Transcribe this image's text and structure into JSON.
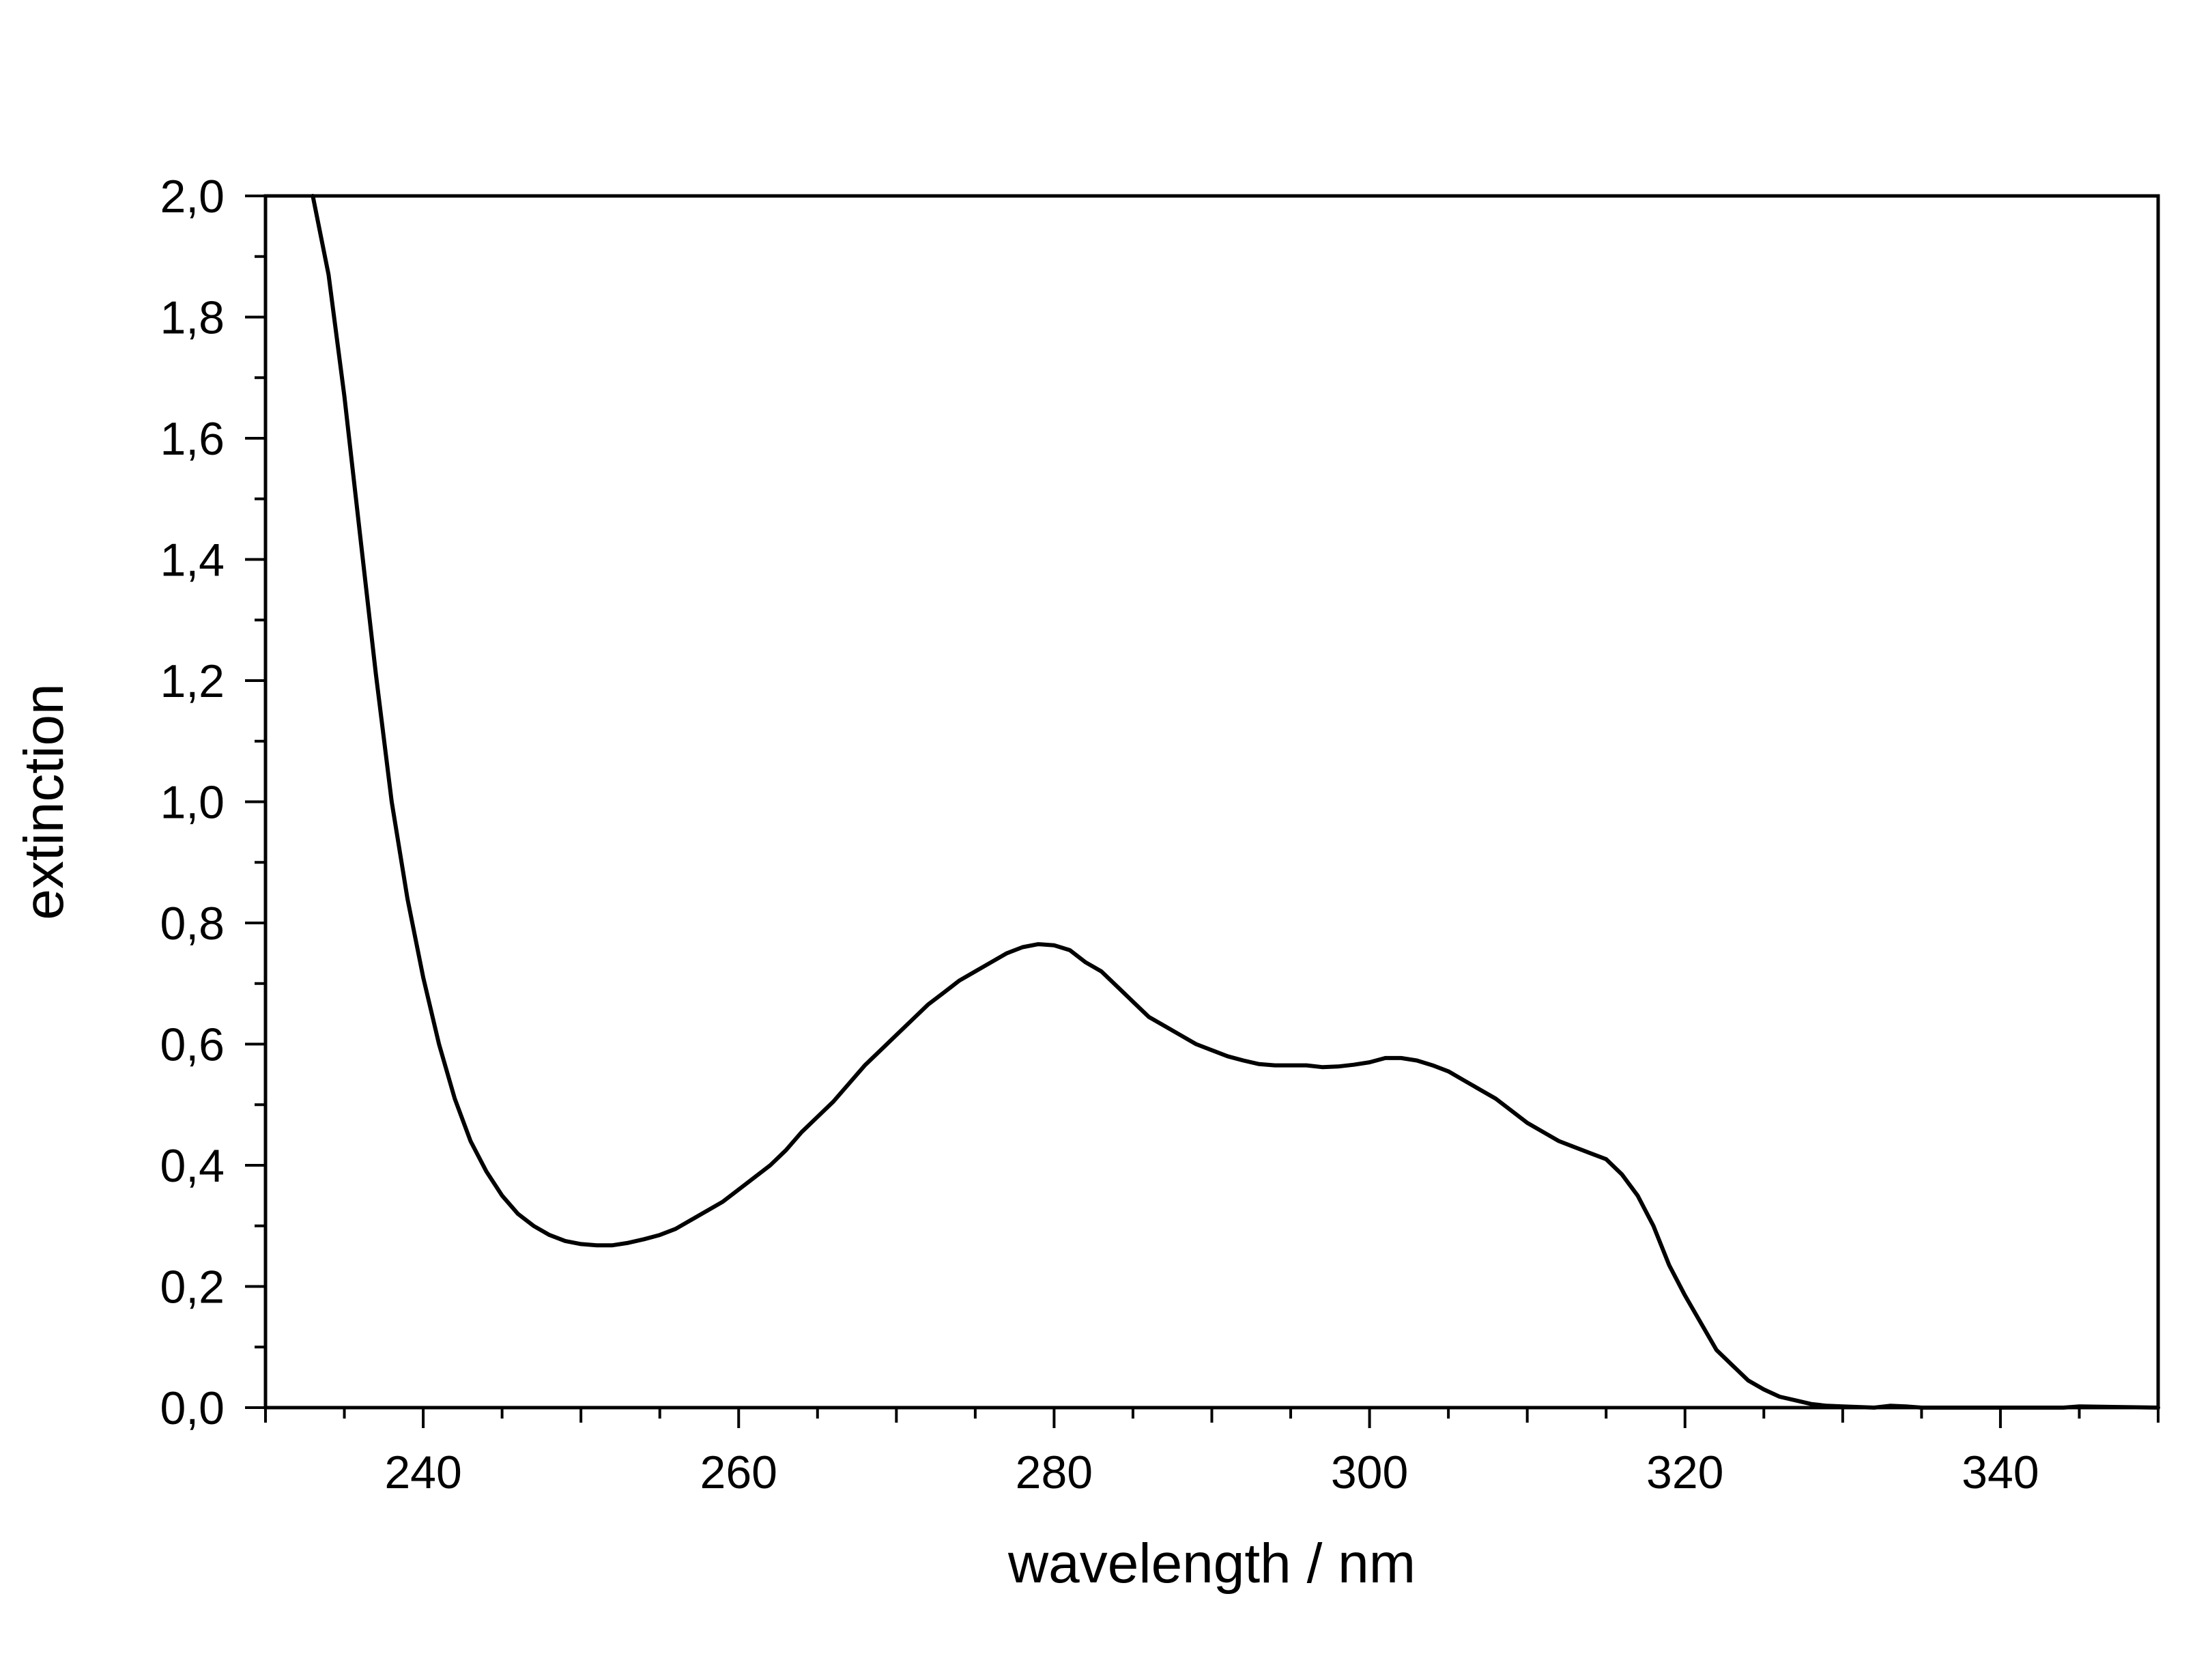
{
  "chart_data": {
    "type": "line",
    "title": "",
    "xlabel": "wavelength / nm",
    "ylabel": "extinction",
    "xlim": [
      230,
      350
    ],
    "ylim": [
      0.0,
      2.0
    ],
    "x_ticks": [
      240,
      260,
      280,
      300,
      320,
      340
    ],
    "x_tick_labels": [
      "240",
      "260",
      "280",
      "300",
      "320",
      "340"
    ],
    "y_ticks": [
      0.0,
      0.2,
      0.4,
      0.6,
      0.8,
      1.0,
      1.2,
      1.4,
      1.6,
      1.8,
      2.0
    ],
    "y_tick_labels": [
      "0,0",
      "0,2",
      "0,4",
      "0,6",
      "0,8",
      "1,0",
      "1,2",
      "1,4",
      "1,6",
      "1,8",
      "2,0"
    ],
    "grid": false,
    "legend": "none",
    "line_color": "#000000",
    "series": [
      {
        "x": [
          233,
          234,
          235,
          236,
          237,
          238,
          239,
          240,
          241,
          242,
          243,
          244,
          245,
          246,
          247,
          248,
          249,
          250,
          251,
          252,
          253,
          254,
          255,
          256,
          257,
          258,
          259,
          260,
          261,
          262,
          263,
          264,
          265,
          266,
          267,
          268,
          269,
          270,
          271,
          272,
          273,
          274,
          275,
          276,
          277,
          278,
          279,
          280,
          281,
          282,
          283,
          284,
          285,
          286,
          287,
          288,
          289,
          290,
          291,
          292,
          293,
          294,
          295,
          296,
          297,
          298,
          299,
          300,
          301,
          302,
          303,
          304,
          305,
          306,
          307,
          308,
          309,
          310,
          311,
          312,
          313,
          314,
          315,
          316,
          317,
          318,
          319,
          320,
          321,
          322,
          323,
          324,
          325,
          326,
          327,
          328,
          329,
          330,
          331,
          332,
          333,
          334,
          335,
          340,
          344,
          345,
          350
        ],
        "y": [
          2.0,
          1.87,
          1.67,
          1.44,
          1.21,
          1.0,
          0.84,
          0.71,
          0.6,
          0.51,
          0.44,
          0.39,
          0.35,
          0.32,
          0.3,
          0.285,
          0.275,
          0.27,
          0.268,
          0.268,
          0.272,
          0.278,
          0.285,
          0.295,
          0.31,
          0.325,
          0.34,
          0.36,
          0.38,
          0.4,
          0.425,
          0.455,
          0.48,
          0.505,
          0.535,
          0.565,
          0.59,
          0.615,
          0.64,
          0.665,
          0.685,
          0.705,
          0.72,
          0.735,
          0.75,
          0.76,
          0.765,
          0.763,
          0.755,
          0.735,
          0.72,
          0.695,
          0.67,
          0.645,
          0.63,
          0.615,
          0.6,
          0.59,
          0.58,
          0.573,
          0.567,
          0.565,
          0.565,
          0.565,
          0.562,
          0.563,
          0.566,
          0.57,
          0.577,
          0.577,
          0.573,
          0.565,
          0.555,
          0.54,
          0.525,
          0.51,
          0.49,
          0.47,
          0.455,
          0.44,
          0.43,
          0.42,
          0.41,
          0.385,
          0.35,
          0.3,
          0.235,
          0.185,
          0.14,
          0.095,
          0.07,
          0.045,
          0.03,
          0.018,
          0.012,
          0.006,
          0.003,
          0.002,
          0.001,
          0.0,
          0.003,
          0.002,
          0.0,
          0.0,
          0.0,
          0.002,
          0.0
        ]
      }
    ]
  }
}
